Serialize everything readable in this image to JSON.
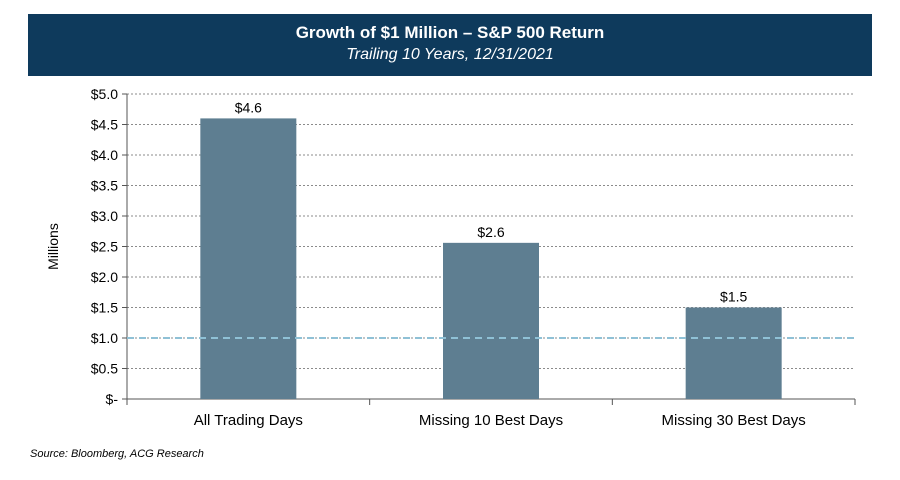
{
  "chart_data": {
    "type": "bar",
    "title": "Growth of $1 Million – S&P 500 Return",
    "subtitle": "Trailing 10 Years, 12/31/2021",
    "categories": [
      "All Trading Days",
      "Missing 10 Best Days",
      "Missing 30 Best Days"
    ],
    "values": [
      4.6,
      2.56,
      1.5
    ],
    "data_labels": [
      "$4.6",
      "$2.6",
      "$1.5"
    ],
    "ylabel": "Millions",
    "xlabel": "",
    "ylim": [
      0,
      5.0
    ],
    "yticks": [
      0,
      0.5,
      1.0,
      1.5,
      2.0,
      2.5,
      3.0,
      3.5,
      4.0,
      4.5,
      5.0
    ],
    "ytick_labels": [
      "$-",
      "$0.5",
      "$1.0",
      "$1.5",
      "$2.0",
      "$2.5",
      "$3.0",
      "$3.5",
      "$4.0",
      "$4.5",
      "$5.0"
    ],
    "reference_line": 1.0,
    "grid": true,
    "colors": {
      "bar": "#5e7e91",
      "title_bg": "#0e3a5c",
      "reference": "#8fc1d6",
      "grid": "#666666"
    }
  },
  "source": "Source: Bloomberg, ACG Research"
}
